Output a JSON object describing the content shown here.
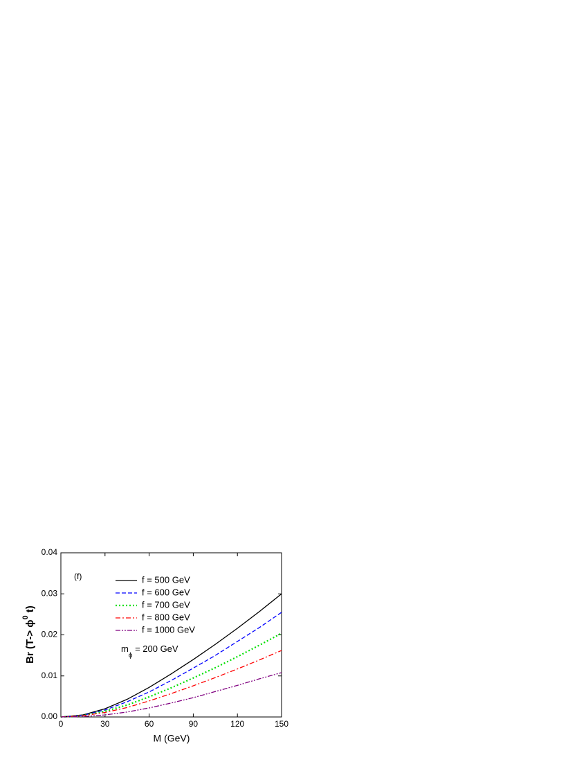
{
  "chart_data": {
    "type": "line",
    "x_label": "M (GeV)",
    "y_label_parts": [
      "Br (T-> ",
      "ϕ",
      "0",
      " t)"
    ],
    "annotation": "(f)",
    "mass_label_parts": [
      "m",
      "ϕ",
      " = 200 GeV"
    ],
    "x": [
      0,
      15,
      30,
      45,
      60,
      75,
      90,
      105,
      120,
      135,
      150
    ],
    "series": [
      {
        "name": "f = 500 GeV",
        "color": "#000000",
        "dash": "solid",
        "values": [
          0,
          0.0005,
          0.002,
          0.0043,
          0.0072,
          0.0105,
          0.014,
          0.0177,
          0.0216,
          0.0257,
          0.03
        ]
      },
      {
        "name": "f = 600 GeV",
        "color": "#0000ff",
        "dash": "dash",
        "values": [
          0,
          0.0004,
          0.0017,
          0.0037,
          0.0061,
          0.0089,
          0.0119,
          0.015,
          0.0184,
          0.0218,
          0.0255
        ]
      },
      {
        "name": "f = 700 GeV",
        "color": "#00e000",
        "dash": "dot",
        "values": [
          0,
          0.0003,
          0.0014,
          0.0029,
          0.0049,
          0.0071,
          0.0095,
          0.012,
          0.0147,
          0.0175,
          0.0204
        ]
      },
      {
        "name": "f = 800 GeV",
        "color": "#ff0000",
        "dash": "dashdot",
        "values": [
          0,
          0.0003,
          0.0011,
          0.0023,
          0.0039,
          0.0057,
          0.0076,
          0.0096,
          0.0117,
          0.0139,
          0.0162
        ]
      },
      {
        "name": "f = 1000 GeV",
        "color": "#800080",
        "dash": "dashdotdot",
        "values": [
          0,
          0.0001,
          0.0005,
          0.0012,
          0.0022,
          0.0034,
          0.0047,
          0.0062,
          0.0077,
          0.0093,
          0.0108
        ]
      }
    ],
    "xlim": [
      0,
      150
    ],
    "xticks": [
      0,
      30,
      60,
      90,
      120,
      150
    ],
    "ylim": [
      0,
      0.04
    ],
    "yticks": [
      {
        "value": 0,
        "label": "0.00"
      },
      0.01,
      0.02,
      0.03,
      0.04
    ]
  }
}
